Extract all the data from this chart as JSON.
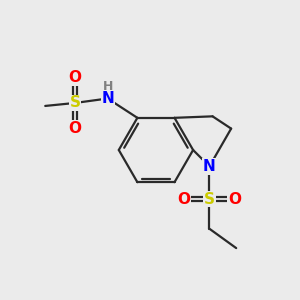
{
  "background_color": "#ebebeb",
  "figsize": [
    3.0,
    3.0
  ],
  "dpi": 100,
  "atom_colors": {
    "C": "#000000",
    "H": "#808080",
    "N": "#0000ff",
    "O": "#ff0000",
    "S": "#cccc00"
  },
  "bond_color": "#2a2a2a",
  "bond_width": 1.6,
  "font_size_atoms": 11
}
